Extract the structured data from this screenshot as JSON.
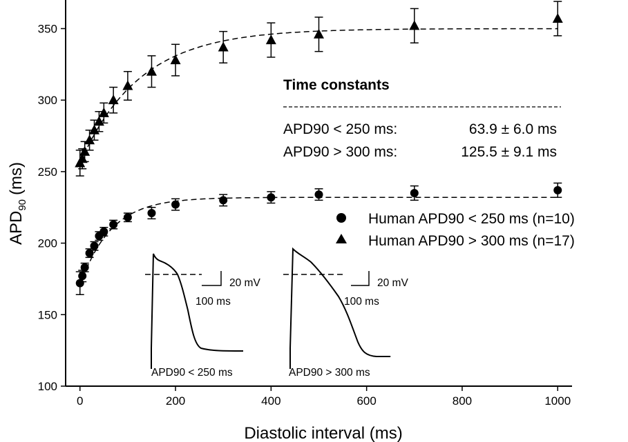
{
  "chart_data": {
    "type": "scatter",
    "xlabel": "Diastolic interval (ms)",
    "ylabel": "APD",
    "ylabel_subscript": "90",
    "ylabel_unit": "(ms)",
    "xlim": [
      -30,
      1030
    ],
    "ylim": [
      100,
      370
    ],
    "xticks": [
      0,
      200,
      400,
      600,
      800,
      1000
    ],
    "yticks": [
      100,
      150,
      200,
      250,
      300,
      350
    ],
    "xtick_labels": [
      "0",
      "200",
      "400",
      "600",
      "800",
      "1000"
    ],
    "ytick_labels": [
      "100",
      "150",
      "200",
      "250",
      "300",
      "350"
    ],
    "series": [
      {
        "name": "Human APD90 < 250 ms (n=10)",
        "marker": "circle",
        "x": [
          0,
          5,
          10,
          20,
          30,
          40,
          50,
          70,
          100,
          150,
          200,
          300,
          400,
          500,
          700,
          1000
        ],
        "y": [
          172,
          177,
          183,
          193,
          198,
          205,
          208,
          213,
          218,
          221,
          227,
          230,
          232,
          234,
          235,
          237
        ],
        "err": [
          8,
          4,
          3,
          3,
          3,
          3,
          3,
          3,
          3,
          4,
          4,
          4,
          4,
          4,
          5,
          5
        ],
        "fit": {
          "model": "single exponential",
          "plateau": 232,
          "amplitude": 62,
          "tau": 63.9
        }
      },
      {
        "name": "Human APD90 > 300 ms (n=17)",
        "marker": "triangle",
        "x": [
          0,
          5,
          10,
          20,
          30,
          40,
          50,
          70,
          100,
          150,
          200,
          300,
          400,
          500,
          700,
          1000
        ],
        "y": [
          256,
          259,
          264,
          272,
          279,
          285,
          291,
          300,
          310,
          320,
          328,
          337,
          342,
          346,
          352,
          357
        ],
        "err": [
          9,
          7,
          7,
          7,
          7,
          7,
          7,
          9,
          10,
          11,
          11,
          11,
          12,
          12,
          12,
          12
        ],
        "fit": {
          "model": "single exponential",
          "plateau": 350,
          "amplitude": 94,
          "tau": 125.5
        }
      }
    ],
    "legend_position": "middle-right",
    "annotation": {
      "title": "Time constants",
      "rows": [
        {
          "label": "APD90 < 250 ms:",
          "value": "63.9 ± 6.0 ms"
        },
        {
          "label": "APD90 > 300 ms:",
          "value": "125.5 ± 9.1 ms"
        }
      ]
    },
    "insets": [
      {
        "caption": "APD90 < 250 ms",
        "scale_voltage": "20 mV",
        "scale_time": "100 ms",
        "trace_shape": "spike-and-dome action potential with plateau ~65 mV and rapid repolarization"
      },
      {
        "caption": "APD90 > 300 ms",
        "scale_voltage": "20 mV",
        "scale_time": "100 ms",
        "trace_shape": "triangular action potential with gradual repolarization"
      }
    ]
  }
}
